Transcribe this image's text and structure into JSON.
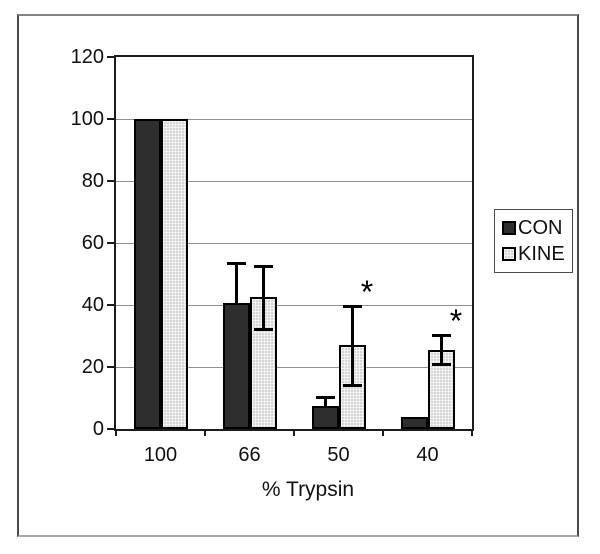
{
  "chart_data": {
    "type": "bar",
    "xlabel": "% Trypsin",
    "ylabel": "",
    "ylim": [
      0,
      120
    ],
    "yticks": [
      0,
      20,
      40,
      60,
      80,
      100,
      120
    ],
    "categories": [
      "100",
      "66",
      "50",
      "40"
    ],
    "series": [
      {
        "name": "CON",
        "pattern": "solid-dark",
        "fill": "#2e2e2e",
        "values": [
          100,
          40.5,
          7.5,
          4
        ],
        "errors_up": [
          0,
          13.5,
          3,
          0
        ],
        "errors_down": [
          0,
          0,
          0,
          0
        ]
      },
      {
        "name": "KINE",
        "pattern": "checker-light",
        "fill": "#d6d6d6",
        "values": [
          100,
          42.5,
          27,
          25.5
        ],
        "errors_up": [
          0,
          10.5,
          13,
          5
        ],
        "errors_down": [
          0,
          10.5,
          13,
          5
        ]
      }
    ],
    "annotations": [
      {
        "text": "*",
        "category_index": 2,
        "series": "KINE"
      },
      {
        "text": "*",
        "category_index": 3,
        "series": "KINE"
      }
    ],
    "legend": {
      "position": "right",
      "entries": [
        "CON",
        "KINE"
      ]
    },
    "grid": true,
    "colors": {
      "grid": "#909090",
      "axis": "#1c1c1c",
      "error_bar": "#000000",
      "text": "#111111",
      "outer_frame": "#4a4a4a",
      "background": "#ffffff"
    }
  }
}
